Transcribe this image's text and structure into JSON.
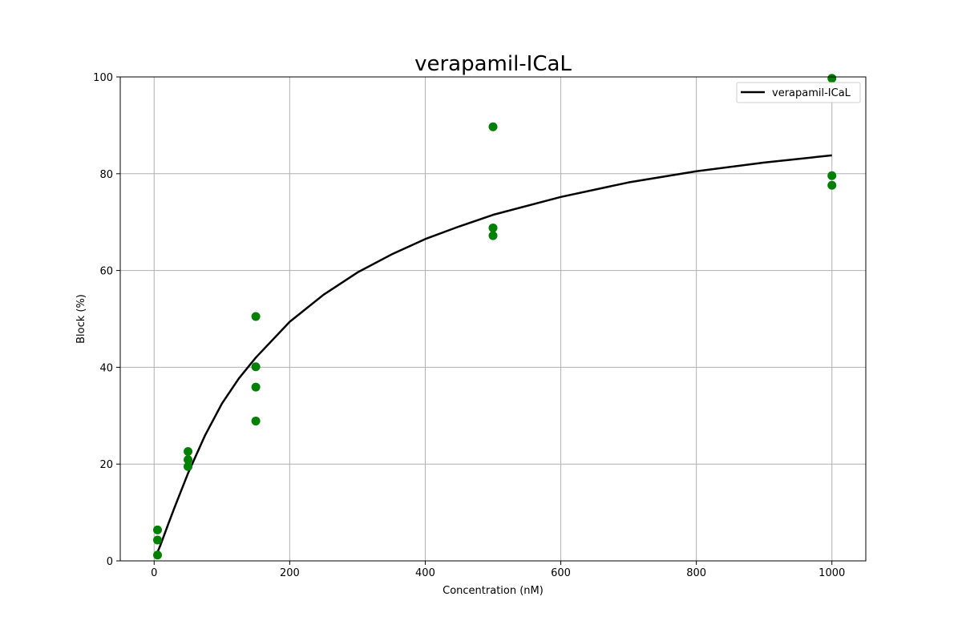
{
  "chart_data": {
    "type": "scatter",
    "title": "verapamil-ICaL",
    "xlabel": "Concentration (nM)",
    "ylabel": "Block (%)",
    "xlim": [
      -50,
      1050
    ],
    "ylim": [
      0,
      100
    ],
    "xticks": [
      0,
      200,
      400,
      600,
      800,
      1000
    ],
    "yticks": [
      0,
      20,
      40,
      60,
      80,
      100
    ],
    "x_tick_labels": [
      "0",
      "200",
      "400",
      "600",
      "800",
      "1000"
    ],
    "y_tick_labels": [
      "0",
      "20",
      "40",
      "60",
      "80",
      "100"
    ],
    "grid": true,
    "legend_position": "top-right",
    "points_color": "#008000",
    "line_color": "#000000",
    "points": [
      {
        "x": 5,
        "y": 6.4
      },
      {
        "x": 5,
        "y": 4.3
      },
      {
        "x": 5,
        "y": 1.2
      },
      {
        "x": 50,
        "y": 22.6
      },
      {
        "x": 50,
        "y": 20.9
      },
      {
        "x": 50,
        "y": 19.5
      },
      {
        "x": 150,
        "y": 50.5
      },
      {
        "x": 150,
        "y": 40.1
      },
      {
        "x": 150,
        "y": 35.9
      },
      {
        "x": 150,
        "y": 28.9
      },
      {
        "x": 500,
        "y": 89.7
      },
      {
        "x": 500,
        "y": 68.8
      },
      {
        "x": 500,
        "y": 67.2
      },
      {
        "x": 1000,
        "y": 99.7
      },
      {
        "x": 1000,
        "y": 79.6
      },
      {
        "x": 1000,
        "y": 77.6
      }
    ],
    "series": [
      {
        "name": "verapamil-ICaL",
        "type": "line",
        "x": [
          5,
          10,
          20,
          30,
          50,
          75,
          100,
          125,
          150,
          200,
          250,
          300,
          350,
          400,
          450,
          500,
          600,
          700,
          800,
          900,
          1000
        ],
        "y": [
          1.8,
          3.5,
          7.3,
          11.0,
          18.1,
          25.9,
          32.5,
          37.7,
          42.0,
          49.4,
          55.0,
          59.6,
          63.3,
          66.5,
          69.1,
          71.5,
          75.2,
          78.2,
          80.5,
          82.3,
          83.8
        ]
      }
    ]
  }
}
